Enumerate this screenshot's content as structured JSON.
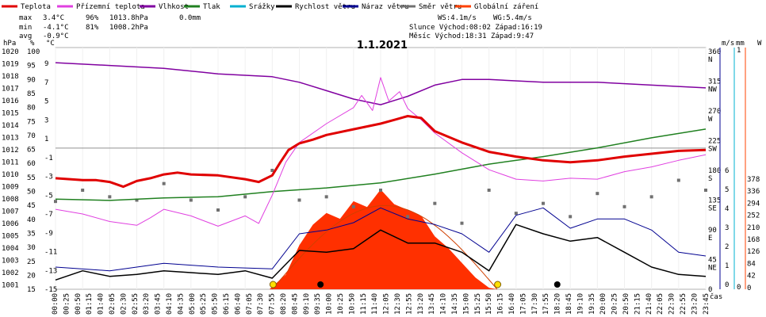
{
  "legend": [
    {
      "label": "Teplota",
      "color": "#e00000"
    },
    {
      "label": "Přízemní teplota",
      "color": "#e040e0"
    },
    {
      "label": "Vlhkost",
      "color": "#8000a0"
    },
    {
      "label": "Tlak",
      "color": "#208020"
    },
    {
      "label": "Srážky",
      "color": "#00b0d0"
    },
    {
      "label": "Rychlost větru",
      "color": "#000000"
    },
    {
      "label": "Náraz větru",
      "color": "#000090"
    },
    {
      "label": "Směr větru",
      "color": "#707070"
    },
    {
      "label": "Globální záření",
      "color": "#ff4000"
    }
  ],
  "stats": {
    "max_label": "max",
    "max_temp": "3.4°C",
    "max_hum": "96%",
    "max_press": "1013.8hPa",
    "precip": "0.0mm",
    "min_label": "min",
    "min_temp": "-4.1°C",
    "min_hum": "81%",
    "min_press": "1008.2hPa",
    "avg_label": "avg",
    "avg_temp": "-0.9°C"
  },
  "info": {
    "ws": "WS:4.1m/s",
    "wg": "WG:5.4m/s",
    "slunce": "Slunce  Východ:08:02  Západ:16:19",
    "mesic": "Měsíc  Východ:18:31  Západ:9:47"
  },
  "date": "1.1.2021",
  "xaxis_label": "čas",
  "axis_units": {
    "hpa": "hPa",
    "pct": "%",
    "degc": "°C",
    "ms": "m/s",
    "mm": "mm",
    "w": "W"
  },
  "axes": {
    "hpa": [
      "1020",
      "1019",
      "1018",
      "1017",
      "1016",
      "1015",
      "1014",
      "1013",
      "1012",
      "1011",
      "1010",
      "1009",
      "1008",
      "1007",
      "1006",
      "1005",
      "1004",
      "1003",
      "1002",
      "1001"
    ],
    "pct": [
      "100",
      "95",
      "90",
      "85",
      "80",
      "75",
      "70",
      "65",
      "60",
      "55",
      "50",
      "45",
      "40",
      "35",
      "30",
      "25",
      "20",
      "15"
    ],
    "degc": [
      "9",
      "7",
      "5",
      "3",
      "1",
      "-1",
      "-3",
      "-5",
      "-7",
      "-9",
      "-11",
      "-13",
      "-15"
    ],
    "dir": [
      "360 N",
      "315 NW",
      "270 W",
      "225 SW",
      "180 S",
      "135 SE",
      "90 E",
      "45 NE",
      "0"
    ],
    "ms": [
      "6",
      "5",
      "4",
      "3",
      "2",
      "1",
      "0"
    ],
    "mm": [
      "1",
      "0"
    ],
    "w": [
      "378",
      "336",
      "294",
      "252",
      "210",
      "168",
      "126",
      "84",
      "42",
      "0"
    ]
  },
  "time_ticks": [
    "00:00",
    "00:25",
    "00:50",
    "01:15",
    "01:40",
    "02:05",
    "02:30",
    "02:55",
    "03:20",
    "03:45",
    "04:10",
    "04:35",
    "05:00",
    "05:25",
    "05:50",
    "06:15",
    "06:40",
    "07:05",
    "07:30",
    "07:55",
    "08:20",
    "08:45",
    "09:10",
    "09:35",
    "10:00",
    "10:25",
    "10:50",
    "11:15",
    "11:40",
    "12:05",
    "12:30",
    "12:55",
    "13:20",
    "13:45",
    "14:10",
    "14:35",
    "15:00",
    "15:25",
    "15:50",
    "16:15",
    "16:40",
    "17:05",
    "17:30",
    "17:55",
    "18:20",
    "18:45",
    "19:10",
    "19:35",
    "20:00",
    "20:25",
    "20:50",
    "21:15",
    "21:40",
    "22:05",
    "22:30",
    "22:55",
    "23:20",
    "23:45"
  ],
  "chart_data": {
    "type": "line",
    "title": "1.1.2021",
    "xlabel": "čas",
    "x_unit": "hours",
    "series": [
      {
        "name": "Teplota",
        "unit": "°C",
        "points": [
          [
            0,
            -3.2
          ],
          [
            1,
            -3.4
          ],
          [
            1.5,
            -3.4
          ],
          [
            2,
            -3.6
          ],
          [
            2.5,
            -4.1
          ],
          [
            3,
            -3.5
          ],
          [
            3.5,
            -3.2
          ],
          [
            4,
            -2.8
          ],
          [
            4.5,
            -2.6
          ],
          [
            5,
            -2.8
          ],
          [
            6,
            -2.9
          ],
          [
            7,
            -3.3
          ],
          [
            7.5,
            -3.6
          ],
          [
            8,
            -2.9
          ],
          [
            8.3,
            -1.5
          ],
          [
            8.6,
            -0.2
          ],
          [
            9,
            0.5
          ],
          [
            9.5,
            0.9
          ],
          [
            10,
            1.4
          ],
          [
            11,
            2.0
          ],
          [
            12,
            2.6
          ],
          [
            12.5,
            3.0
          ],
          [
            13,
            3.4
          ],
          [
            13.5,
            3.2
          ],
          [
            14,
            1.8
          ],
          [
            14.5,
            1.2
          ],
          [
            15,
            0.6
          ],
          [
            16,
            -0.4
          ],
          [
            17,
            -0.9
          ],
          [
            18,
            -1.3
          ],
          [
            19,
            -1.5
          ],
          [
            20,
            -1.3
          ],
          [
            21,
            -0.9
          ],
          [
            22,
            -0.6
          ],
          [
            23,
            -0.3
          ],
          [
            24,
            -0.2
          ]
        ]
      },
      {
        "name": "Přízemní teplota",
        "unit": "°C",
        "points": [
          [
            0,
            -6.5
          ],
          [
            1,
            -7.0
          ],
          [
            2,
            -7.8
          ],
          [
            3,
            -8.2
          ],
          [
            3.5,
            -7.4
          ],
          [
            4,
            -6.5
          ],
          [
            5,
            -7.2
          ],
          [
            6,
            -8.3
          ],
          [
            7,
            -7.2
          ],
          [
            7.5,
            -8.0
          ],
          [
            8,
            -5.0
          ],
          [
            8.5,
            -1.5
          ],
          [
            9,
            0.6
          ],
          [
            10,
            2.6
          ],
          [
            11,
            4.3
          ],
          [
            11.3,
            5.6
          ],
          [
            11.7,
            4.0
          ],
          [
            12,
            7.5
          ],
          [
            12.3,
            5.0
          ],
          [
            12.7,
            6.0
          ],
          [
            13,
            4.2
          ],
          [
            13.5,
            3.0
          ],
          [
            14,
            1.6
          ],
          [
            15,
            -0.5
          ],
          [
            16,
            -2.3
          ],
          [
            17,
            -3.3
          ],
          [
            18,
            -3.5
          ],
          [
            19,
            -3.2
          ],
          [
            20,
            -3.3
          ],
          [
            21,
            -2.5
          ],
          [
            22,
            -2.0
          ],
          [
            23,
            -1.3
          ],
          [
            24,
            -0.7
          ]
        ]
      },
      {
        "name": "Vlhkost",
        "unit": "%",
        "points": [
          [
            0,
            96
          ],
          [
            2,
            95
          ],
          [
            4,
            94
          ],
          [
            6,
            92
          ],
          [
            8,
            91
          ],
          [
            9,
            89
          ],
          [
            10,
            86
          ],
          [
            11,
            83
          ],
          [
            12,
            81
          ],
          [
            13,
            84
          ],
          [
            14,
            88
          ],
          [
            15,
            90
          ],
          [
            16,
            90
          ],
          [
            18,
            89
          ],
          [
            20,
            89
          ],
          [
            22,
            88
          ],
          [
            24,
            87
          ]
        ]
      },
      {
        "name": "Tlak",
        "unit": "hPa",
        "points": [
          [
            0,
            1008.2
          ],
          [
            2,
            1008.1
          ],
          [
            4,
            1008.3
          ],
          [
            6,
            1008.4
          ],
          [
            8,
            1008.8
          ],
          [
            10,
            1009.1
          ],
          [
            12,
            1009.5
          ],
          [
            14,
            1010.2
          ],
          [
            16,
            1011.0
          ],
          [
            18,
            1011.6
          ],
          [
            20,
            1012.3
          ],
          [
            22,
            1013.1
          ],
          [
            24,
            1013.8
          ]
        ]
      },
      {
        "name": "Rychlost větru",
        "unit": "m/s",
        "points": [
          [
            0,
            0.5
          ],
          [
            1,
            1
          ],
          [
            2,
            0.7
          ],
          [
            3,
            0.8
          ],
          [
            4,
            1.0
          ],
          [
            5,
            0.9
          ],
          [
            6,
            0.8
          ],
          [
            7,
            1.0
          ],
          [
            8,
            0.6
          ],
          [
            9,
            2.1
          ],
          [
            10,
            2.0
          ],
          [
            11,
            2.2
          ],
          [
            12,
            3.2
          ],
          [
            13,
            2.5
          ],
          [
            14,
            2.5
          ],
          [
            15,
            2.0
          ],
          [
            16,
            1.0
          ],
          [
            17,
            3.5
          ],
          [
            18,
            3.0
          ],
          [
            19,
            2.6
          ],
          [
            20,
            2.8
          ],
          [
            21,
            2.0
          ],
          [
            22,
            1.2
          ],
          [
            23,
            0.8
          ],
          [
            24,
            0.7
          ]
        ]
      },
      {
        "name": "Náraz větru",
        "unit": "m/s",
        "points": [
          [
            0,
            1.2
          ],
          [
            2,
            1.0
          ],
          [
            4,
            1.4
          ],
          [
            6,
            1.2
          ],
          [
            8,
            1.1
          ],
          [
            9,
            3.0
          ],
          [
            10,
            3.2
          ],
          [
            11,
            3.6
          ],
          [
            12,
            4.4
          ],
          [
            13,
            3.8
          ],
          [
            14,
            3.5
          ],
          [
            15,
            3.0
          ],
          [
            16,
            2.0
          ],
          [
            17,
            4.0
          ],
          [
            18,
            4.4
          ],
          [
            19,
            3.3
          ],
          [
            20,
            3.8
          ],
          [
            21,
            3.8
          ],
          [
            22,
            3.2
          ],
          [
            23,
            2.0
          ],
          [
            24,
            1.8
          ]
        ]
      },
      {
        "name": "Globální záření",
        "unit": "W",
        "points": [
          [
            7.9,
            0
          ],
          [
            8.5,
            50
          ],
          [
            9,
            150
          ],
          [
            9.5,
            220
          ],
          [
            10,
            260
          ],
          [
            10.5,
            240
          ],
          [
            11,
            300
          ],
          [
            11.5,
            280
          ],
          [
            12,
            340
          ],
          [
            12.5,
            290
          ],
          [
            13,
            270
          ],
          [
            13.5,
            250
          ],
          [
            14,
            180
          ],
          [
            14.5,
            140
          ],
          [
            15,
            90
          ],
          [
            15.5,
            40
          ],
          [
            16,
            5
          ],
          [
            16.3,
            0
          ]
        ]
      },
      {
        "name": "Směr větru",
        "unit": "°",
        "points": [
          [
            0,
            133
          ],
          [
            1,
            150
          ],
          [
            2,
            140
          ],
          [
            3,
            135
          ],
          [
            4,
            160
          ],
          [
            5,
            135
          ],
          [
            6,
            120
          ],
          [
            7,
            140
          ],
          [
            8,
            180
          ],
          [
            9,
            135
          ],
          [
            10,
            140
          ],
          [
            11,
            125
          ],
          [
            12,
            150
          ],
          [
            13,
            110
          ],
          [
            14,
            130
          ],
          [
            15,
            100
          ],
          [
            16,
            150
          ],
          [
            17,
            115
          ],
          [
            18,
            130
          ],
          [
            19,
            110
          ],
          [
            20,
            145
          ],
          [
            21,
            125
          ],
          [
            22,
            140
          ],
          [
            23,
            165
          ],
          [
            24,
            150
          ]
        ]
      }
    ]
  }
}
